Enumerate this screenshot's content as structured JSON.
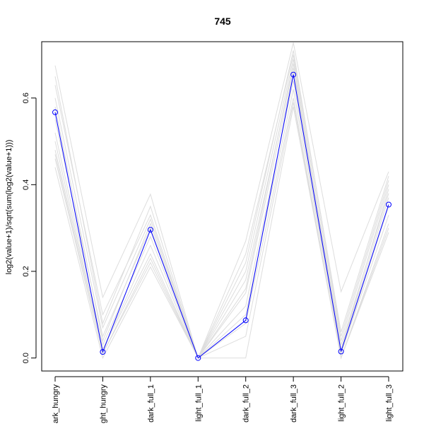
{
  "chart_data": {
    "type": "line",
    "title": "745",
    "xlabel": "",
    "ylabel": "log2(value+1)/sqrt(sum(log2(value+1)))",
    "categories": [
      "dark_hungry",
      "light_hungry",
      "dark_full_1",
      "light_full_1",
      "dark_full_2",
      "dark_full_3",
      "light_full_2",
      "light_full_3"
    ],
    "tick_labels_visible": [
      "ark_hungry",
      "ght_hungry",
      "dark_full_1",
      "light_full_1",
      "dark_full_2",
      "dark_full_3",
      "light_full_2",
      "light_full_3"
    ],
    "ylim": [
      -0.03,
      0.73
    ],
    "yticks": [
      0.0,
      0.2,
      0.4,
      0.6
    ],
    "ytick_labels": [
      "0.0",
      "0.2",
      "0.4",
      "0.6"
    ],
    "grid": false,
    "highlight_series": {
      "color": "#0000ff",
      "marker": "open-circle",
      "values": [
        0.567,
        0.014,
        0.296,
        0.0,
        0.087,
        0.654,
        0.015,
        0.354
      ]
    },
    "background_series": {
      "color": "#dddddd",
      "series": [
        {
          "values": [
            0.675,
            0.14,
            0.378,
            0.0,
            0.27,
            0.728,
            0.153,
            0.43
          ]
        },
        {
          "values": [
            0.63,
            0.1,
            0.33,
            0.0,
            0.24,
            0.7,
            0.06,
            0.42
          ]
        },
        {
          "values": [
            0.6,
            0.07,
            0.32,
            0.0,
            0.2,
            0.69,
            0.04,
            0.4
          ]
        },
        {
          "values": [
            0.55,
            0.05,
            0.3,
            0.0,
            0.18,
            0.67,
            0.03,
            0.38
          ]
        },
        {
          "values": [
            0.52,
            0.03,
            0.28,
            0.0,
            0.15,
            0.66,
            0.02,
            0.37
          ]
        },
        {
          "values": [
            0.5,
            0.02,
            0.26,
            0.0,
            0.12,
            0.64,
            0.01,
            0.35
          ]
        },
        {
          "values": [
            0.48,
            0.02,
            0.24,
            0.0,
            0.1,
            0.62,
            0.01,
            0.33
          ]
        },
        {
          "values": [
            0.46,
            0.01,
            0.22,
            0.0,
            0.08,
            0.6,
            0.0,
            0.31
          ]
        },
        {
          "values": [
            0.44,
            0.0,
            0.21,
            0.0,
            0.0,
            0.58,
            0.0,
            0.29
          ]
        },
        {
          "values": [
            0.65,
            0.08,
            0.35,
            0.0,
            0.22,
            0.71,
            0.05,
            0.41
          ]
        },
        {
          "values": [
            0.58,
            0.04,
            0.31,
            0.0,
            0.16,
            0.68,
            0.02,
            0.39
          ]
        },
        {
          "values": [
            0.47,
            0.01,
            0.23,
            0.0,
            0.05,
            0.59,
            0.0,
            0.3
          ]
        }
      ]
    }
  }
}
